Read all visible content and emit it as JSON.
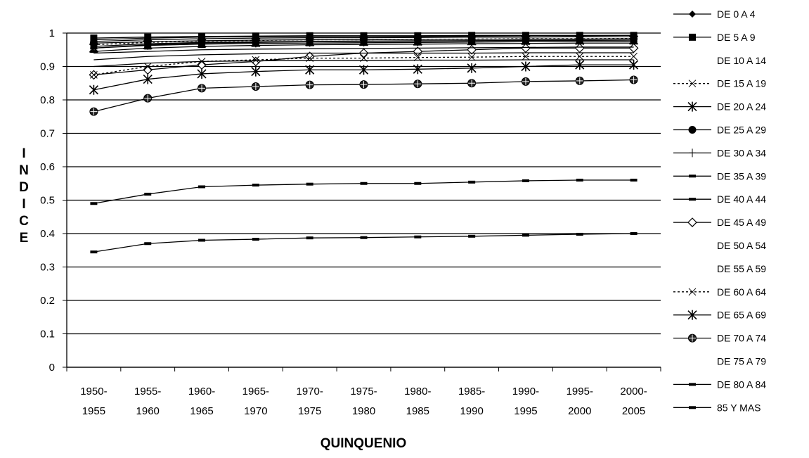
{
  "chart_data": {
    "type": "line",
    "xlabel": "QUINQUENIO",
    "ylabel": "INDICE",
    "ylim": [
      0,
      1
    ],
    "yticks": [
      "0",
      "0.1",
      "0.2",
      "0.3",
      "0.4",
      "0.5",
      "0.6",
      "0.7",
      "0.8",
      "0.9",
      "1"
    ],
    "grid": "horizontal",
    "legend_position": "right",
    "categories": [
      [
        "1950-",
        "1955"
      ],
      [
        "1955-",
        "1960"
      ],
      [
        "1960-",
        "1965"
      ],
      [
        "1965-",
        "1970"
      ],
      [
        "1970-",
        "1975"
      ],
      [
        "1975-",
        "1980"
      ],
      [
        "1980-",
        "1985"
      ],
      [
        "1985-",
        "1990"
      ],
      [
        "1990-",
        "1995"
      ],
      [
        "1995-",
        "2000"
      ],
      [
        "2000-",
        "2005"
      ]
    ],
    "series": [
      {
        "name": "DE 0 A 4",
        "marker": "diamond",
        "values": [
          0.98,
          0.985,
          0.988,
          0.989,
          0.99,
          0.99,
          0.99,
          0.991,
          0.992,
          0.992,
          0.993
        ]
      },
      {
        "name": "DE 5 A 9",
        "marker": "square",
        "values": [
          0.985,
          0.988,
          0.99,
          0.991,
          0.992,
          0.992,
          0.992,
          0.993,
          0.993,
          0.993,
          0.993
        ]
      },
      {
        "name": "DE 10 A 14",
        "marker": "none",
        "values": [
          0.975,
          0.98,
          0.983,
          0.985,
          0.986,
          0.986,
          0.987,
          0.988,
          0.988,
          0.989,
          0.989
        ]
      },
      {
        "name": "DE 15 A 19",
        "marker": "x",
        "values": [
          0.965,
          0.972,
          0.976,
          0.978,
          0.98,
          0.98,
          0.981,
          0.982,
          0.983,
          0.983,
          0.984
        ]
      },
      {
        "name": "DE 20 A 24",
        "marker": "star",
        "values": [
          0.955,
          0.965,
          0.97,
          0.972,
          0.974,
          0.975,
          0.976,
          0.977,
          0.978,
          0.978,
          0.979
        ]
      },
      {
        "name": "DE 25 A 29",
        "marker": "circle",
        "values": [
          0.97,
          0.974,
          0.977,
          0.979,
          0.98,
          0.98,
          0.981,
          0.981,
          0.982,
          0.982,
          0.983
        ]
      },
      {
        "name": "DE 30 A 34",
        "marker": "plus",
        "values": [
          0.96,
          0.968,
          0.972,
          0.974,
          0.975,
          0.976,
          0.977,
          0.977,
          0.978,
          0.979,
          0.979
        ]
      },
      {
        "name": "DE 35 A 39",
        "marker": "dash",
        "values": [
          0.955,
          0.963,
          0.967,
          0.969,
          0.97,
          0.971,
          0.972,
          0.973,
          0.974,
          0.974,
          0.975
        ]
      },
      {
        "name": "DE 40 A 44",
        "marker": "dash",
        "values": [
          0.945,
          0.955,
          0.96,
          0.963,
          0.965,
          0.966,
          0.967,
          0.968,
          0.969,
          0.97,
          0.97
        ]
      },
      {
        "name": "DE 45 A 49",
        "marker": "open-diamond",
        "values": [
          0.875,
          0.89,
          0.905,
          0.915,
          0.93,
          0.94,
          0.945,
          0.95,
          0.955,
          0.955,
          0.955
        ]
      },
      {
        "name": "DE 50 A 54",
        "marker": "none",
        "values": [
          0.92,
          0.93,
          0.935,
          0.938,
          0.94,
          0.94,
          0.94,
          0.94,
          0.941,
          0.941,
          0.941
        ]
      },
      {
        "name": "DE 55 A 59",
        "marker": "none",
        "values": [
          0.9,
          0.91,
          0.915,
          0.917,
          0.918,
          0.918,
          0.919,
          0.919,
          0.92,
          0.92,
          0.92
        ]
      },
      {
        "name": "DE 60 A 64",
        "marker": "x-dashed",
        "values": [
          0.875,
          0.9,
          0.915,
          0.92,
          0.925,
          0.925,
          0.927,
          0.928,
          0.93,
          0.93,
          0.93
        ]
      },
      {
        "name": "DE 65 A 69",
        "marker": "star",
        "values": [
          0.83,
          0.862,
          0.878,
          0.885,
          0.89,
          0.89,
          0.892,
          0.895,
          0.9,
          0.905,
          0.905
        ]
      },
      {
        "name": "DE 70 A 74",
        "marker": "circle-plus",
        "values": [
          0.765,
          0.805,
          0.835,
          0.84,
          0.845,
          0.846,
          0.848,
          0.85,
          0.855,
          0.857,
          0.86
        ]
      },
      {
        "name": "DE 75 A 79",
        "marker": "none",
        "values": [
          0.94,
          0.945,
          0.95,
          0.952,
          0.953,
          0.954,
          0.955,
          0.956,
          0.957,
          0.958,
          0.958
        ]
      },
      {
        "name": "DE 80 A 84",
        "marker": "dash",
        "values": [
          0.49,
          0.518,
          0.54,
          0.545,
          0.548,
          0.55,
          0.55,
          0.554,
          0.558,
          0.56,
          0.56
        ]
      },
      {
        "name": "85 Y MAS",
        "marker": "dash",
        "values": [
          0.345,
          0.37,
          0.38,
          0.383,
          0.387,
          0.388,
          0.39,
          0.392,
          0.395,
          0.398,
          0.4
        ]
      }
    ]
  }
}
